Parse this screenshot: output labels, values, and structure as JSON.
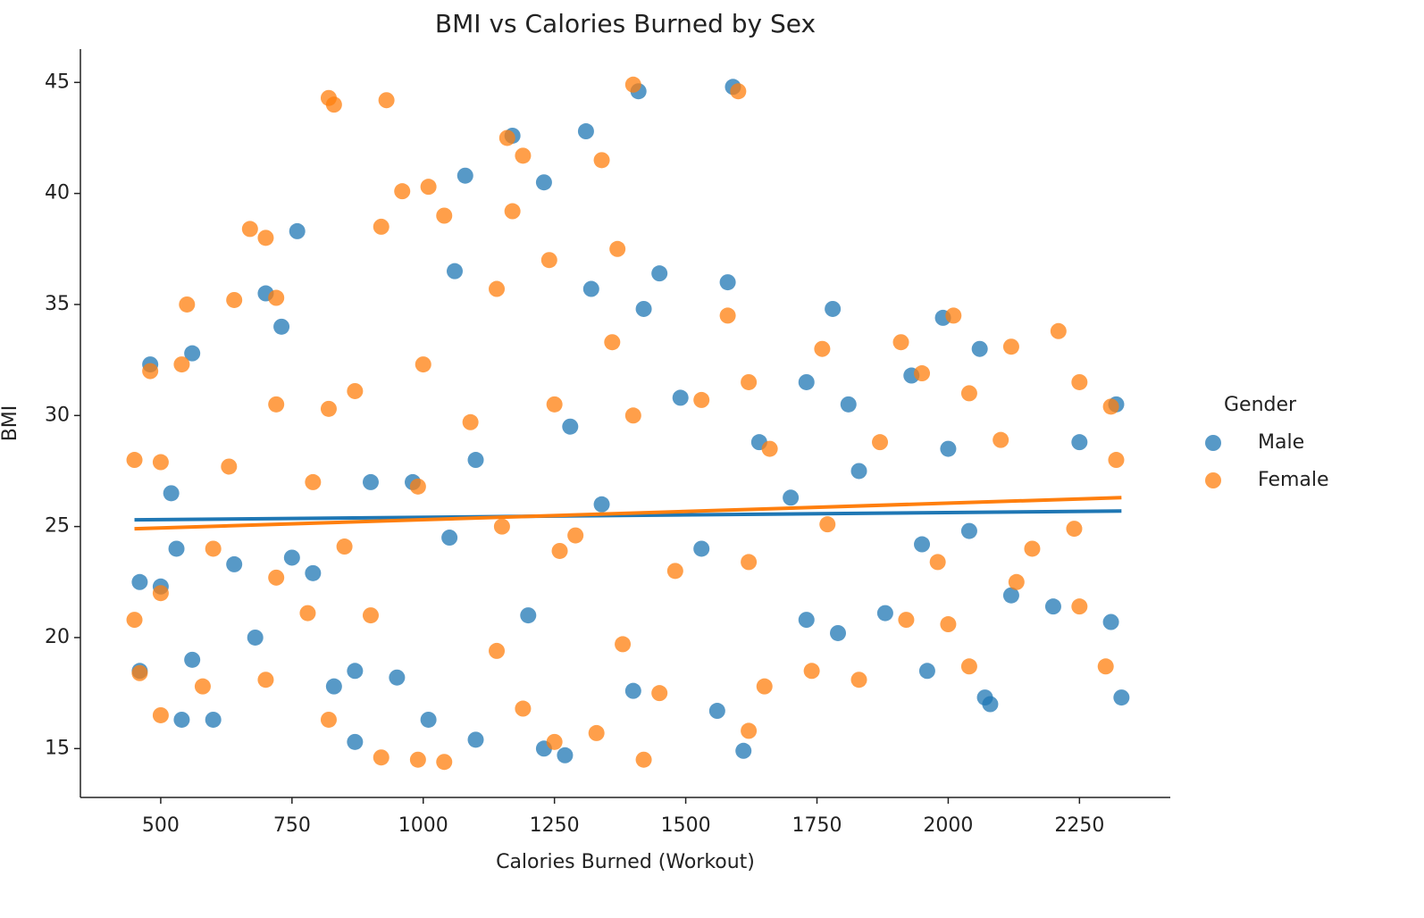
{
  "chart_data": {
    "type": "scatter",
    "title": "BMI vs Calories Burned by Sex",
    "x_label": "Calories Burned (Workout)",
    "y_label": "BMI",
    "xlim": [
      347,
      2423
    ],
    "ylim": [
      12.8,
      46.5
    ],
    "xticks": [
      500,
      750,
      1000,
      1250,
      1500,
      1750,
      2000,
      2250
    ],
    "yticks": [
      15,
      20,
      25,
      30,
      35,
      40,
      45
    ],
    "legend_title": "Gender",
    "legend": "right",
    "series": [
      {
        "name": "Male",
        "color": "#1f77b4",
        "x": [
          1590,
          1410,
          1310,
          1170,
          1080,
          1230,
          1580,
          1060,
          760,
          700,
          730,
          1420,
          1780,
          1990,
          2060,
          1930,
          1730,
          1810,
          2320,
          2250,
          2000,
          1640,
          1490,
          1280,
          1100,
          980,
          900,
          520,
          560,
          480,
          460,
          500,
          530,
          560,
          540,
          600,
          680,
          790,
          830,
          870,
          950,
          1010,
          1100,
          1230,
          1270,
          1400,
          1560,
          1610,
          1730,
          1790,
          1880,
          1960,
          2070,
          2080,
          2330,
          2310,
          2200,
          2120,
          2040,
          1950,
          1830,
          1700,
          1530,
          1340,
          1200,
          1050,
          870,
          750,
          640,
          460,
          1320,
          1450
        ],
        "y": [
          44.8,
          44.6,
          42.8,
          42.6,
          40.8,
          40.5,
          36,
          36.5,
          38.3,
          35.5,
          34,
          34.8,
          34.8,
          34.4,
          33,
          31.8,
          31.5,
          30.5,
          30.5,
          28.8,
          28.5,
          28.8,
          30.8,
          29.5,
          28,
          27,
          27,
          26.5,
          32.8,
          32.3,
          22.5,
          22.3,
          24,
          19,
          16.3,
          16.3,
          20,
          22.9,
          17.8,
          15.3,
          18.2,
          16.3,
          15.4,
          15,
          14.7,
          17.6,
          16.7,
          14.9,
          20.8,
          20.2,
          21.1,
          18.5,
          17.3,
          17,
          17.3,
          20.7,
          21.4,
          21.9,
          24.8,
          24.2,
          27.5,
          26.3,
          24,
          26,
          21,
          24.5,
          18.5,
          23.6,
          23.3,
          18.5,
          35.7,
          36.4
        ],
        "fit_x": [
          450,
          2330
        ],
        "fit_y": [
          25.3,
          25.7
        ]
      },
      {
        "name": "Female",
        "color": "#ff7f0e",
        "x": [
          820,
          830,
          930,
          1400,
          1600,
          1160,
          1190,
          1340,
          1010,
          960,
          1170,
          1040,
          670,
          700,
          920,
          1240,
          1370,
          640,
          550,
          720,
          1140,
          1580,
          1910,
          2010,
          2120,
          2210,
          2250,
          2310,
          1950,
          2040,
          1760,
          1620,
          1530,
          1360,
          1000,
          870,
          820,
          540,
          480,
          450,
          500,
          630,
          720,
          790,
          1090,
          1250,
          1400,
          1660,
          1870,
          2100,
          2320,
          2240,
          2160,
          1980,
          1770,
          1620,
          1480,
          1290,
          1260,
          1150,
          990,
          850,
          720,
          600,
          500,
          450,
          500,
          580,
          700,
          820,
          920,
          990,
          1040,
          1190,
          1250,
          1330,
          1420,
          1450,
          1620,
          1650,
          1740,
          1830,
          1920,
          2040,
          2130,
          2250,
          2300,
          2000,
          1380,
          1140,
          900,
          780,
          460
        ],
        "y": [
          44.3,
          44,
          44.2,
          44.9,
          44.6,
          42.5,
          41.7,
          41.5,
          40.3,
          40.1,
          39.2,
          39,
          38.4,
          38,
          38.5,
          37,
          37.5,
          35.2,
          35,
          35.3,
          35.7,
          34.5,
          33.3,
          34.5,
          33.1,
          33.8,
          31.5,
          30.4,
          31.9,
          31,
          33,
          31.5,
          30.7,
          33.3,
          32.3,
          31.1,
          30.3,
          32.3,
          32,
          28,
          27.9,
          27.7,
          30.5,
          27,
          29.7,
          30.5,
          30,
          28.5,
          28.8,
          28.9,
          28,
          24.9,
          24,
          23.4,
          25.1,
          23.4,
          23,
          24.6,
          23.9,
          25,
          26.8,
          24.1,
          22.7,
          24,
          22,
          20.8,
          16.5,
          17.8,
          18.1,
          16.3,
          14.6,
          14.5,
          14.4,
          16.8,
          15.3,
          15.7,
          14.5,
          17.5,
          15.8,
          17.8,
          18.5,
          18.1,
          20.8,
          18.7,
          22.5,
          21.4,
          18.7,
          20.6,
          19.7,
          19.4,
          21,
          21.1,
          18.4
        ],
        "fit_x": [
          450,
          2330
        ],
        "fit_y": [
          24.9,
          26.3
        ]
      }
    ]
  }
}
